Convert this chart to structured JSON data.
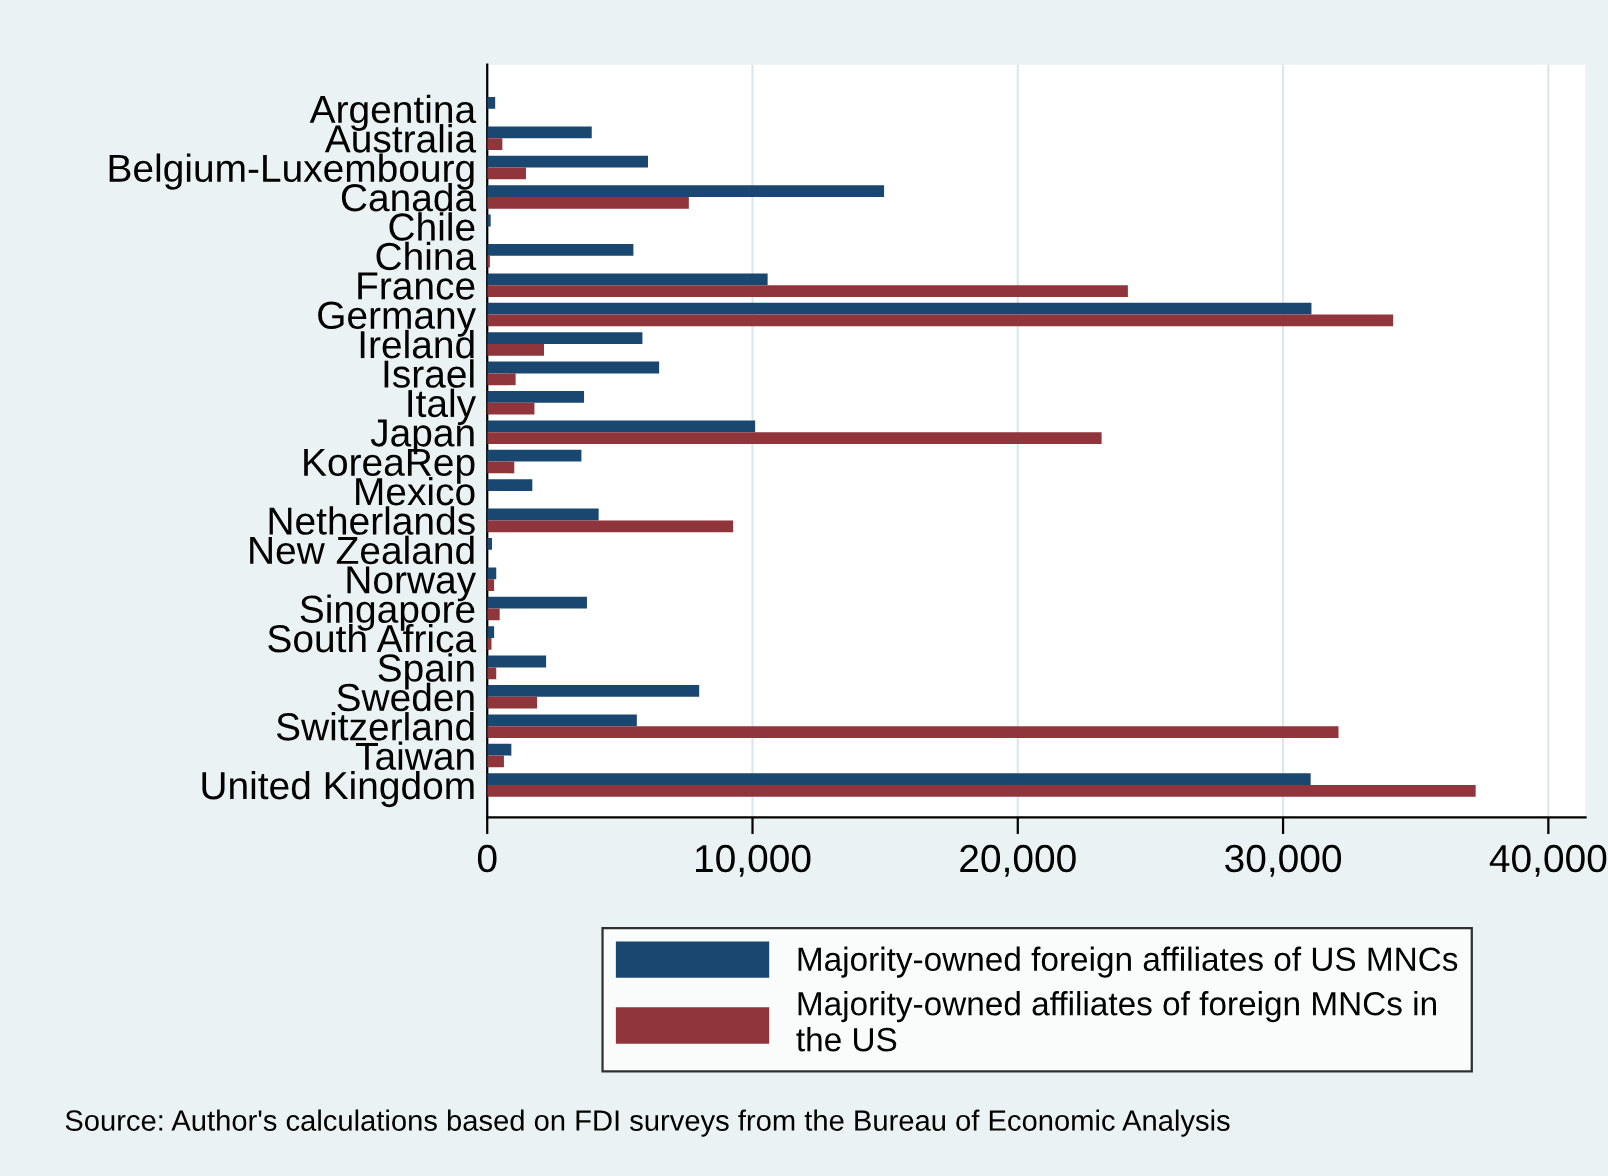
{
  "chart_data": {
    "type": "bar",
    "orientation": "horizontal",
    "categories": [
      "Argentina",
      "Australia",
      "Belgium-Luxembourg",
      "Canada",
      "Chile",
      "China",
      "France",
      "Germany",
      "Ireland",
      "Israel",
      "Italy",
      "Japan",
      "KoreaRep",
      "Mexico",
      "Netherlands",
      "New Zealand",
      "Norway",
      "Singapore",
      "South Africa",
      "Spain",
      "Sweden",
      "Switzerland",
      "Taiwan",
      "United Kingdom"
    ],
    "series": [
      {
        "name": "Majority-owned foreign affiliates of US MNCs",
        "color": "#1a476f",
        "values": [
          300,
          3940,
          6060,
          14960,
          130,
          5510,
          10570,
          31070,
          5850,
          6480,
          3650,
          10100,
          3550,
          1700,
          4200,
          180,
          340,
          3760,
          260,
          2220,
          7990,
          5640,
          910,
          31040
        ]
      },
      {
        "name": "Majority-owned affiliates of foreign MNCs in the US",
        "color": "#90353b",
        "values": [
          0,
          570,
          1460,
          7600,
          null,
          100,
          24150,
          34150,
          2140,
          1070,
          1780,
          23160,
          1020,
          null,
          9270,
          null,
          260,
          470,
          160,
          340,
          1880,
          32090,
          630,
          37260
        ]
      }
    ],
    "xlim": [
      0,
      41400
    ],
    "xticks": [
      {
        "value": 0,
        "label": "0"
      },
      {
        "value": 10000,
        "label": "10,000"
      },
      {
        "value": 20000,
        "label": "20,000"
      },
      {
        "value": 30000,
        "label": "30,000"
      },
      {
        "value": 40000,
        "label": "40,000"
      }
    ],
    "grid": "x",
    "legend": "bottom",
    "annotations": [
      "Source: Author's calculations based on FDI surveys from the Bureau of Economic Analysis"
    ]
  }
}
